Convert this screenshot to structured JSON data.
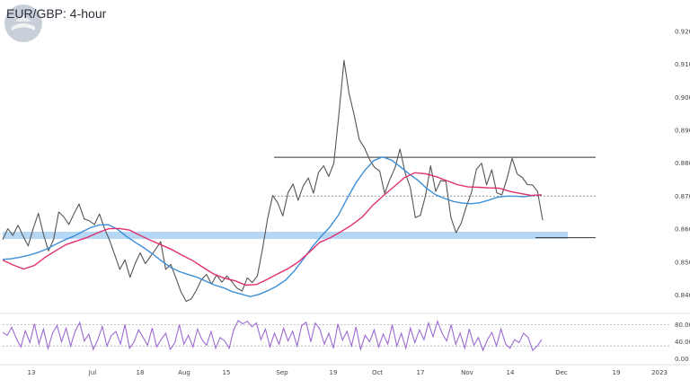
{
  "chart_data": {
    "type": "line",
    "title": "EUR/GBP: 4-hour",
    "x_tick_labels": [
      "13",
      "Jul",
      "18",
      "Aug",
      "15",
      "Sep",
      "19",
      "Oct",
      "17",
      "Nov",
      "14",
      "Dec",
      "19",
      "2023"
    ],
    "y_tick_labels": [
      "0.9200",
      "0.9100",
      "0.9000",
      "0.8900",
      "0.8800",
      "0.8700",
      "0.8600",
      "0.8500",
      "0.8400"
    ],
    "ylim": [
      0.8355,
      0.9295
    ],
    "rsi_tick_labels": [
      "80.00",
      "40.00",
      "0.00"
    ],
    "rsi_ylim": [
      -5,
      100
    ],
    "grid": false,
    "price_series": [
      {
        "name": "",
        "color": "#555555",
        "values": [
          0.8568,
          0.8601,
          0.8581,
          0.8612,
          0.8579,
          0.8549,
          0.8602,
          0.8648,
          0.8584,
          0.8534,
          0.8569,
          0.8652,
          0.8637,
          0.8614,
          0.8647,
          0.8676,
          0.8631,
          0.8625,
          0.8614,
          0.8646,
          0.8601,
          0.8565,
          0.8522,
          0.8478,
          0.8507,
          0.8454,
          0.8495,
          0.8528,
          0.8495,
          0.8517,
          0.8538,
          0.8562,
          0.8478,
          0.8493,
          0.8452,
          0.841,
          0.8381,
          0.8388,
          0.8414,
          0.8446,
          0.8463,
          0.8433,
          0.8461,
          0.8439,
          0.8458,
          0.844,
          0.8421,
          0.8412,
          0.8452,
          0.8438,
          0.8458,
          0.854,
          0.8631,
          0.8702,
          0.8679,
          0.864,
          0.871,
          0.8737,
          0.8687,
          0.8731,
          0.8755,
          0.8709,
          0.8772,
          0.8792,
          0.876,
          0.8799,
          0.8948,
          0.9112,
          0.9012,
          0.8946,
          0.8871,
          0.8847,
          0.8812,
          0.8787,
          0.8776,
          0.8708,
          0.8751,
          0.8785,
          0.8843,
          0.8771,
          0.8727,
          0.8635,
          0.8642,
          0.8701,
          0.8792,
          0.8714,
          0.8747,
          0.8745,
          0.8635,
          0.8589,
          0.8618,
          0.8668,
          0.8709,
          0.8781,
          0.88,
          0.8734,
          0.878,
          0.871,
          0.8704,
          0.8753,
          0.8815,
          0.8767,
          0.8757,
          0.8735,
          0.8734,
          0.8714,
          0.8627
        ]
      }
    ],
    "moving_averages": [
      {
        "name": "",
        "color": "#3d8fd9",
        "values": [
          0.8508,
          0.851,
          0.8515,
          0.8521,
          0.8529,
          0.854,
          0.8554,
          0.8567,
          0.8578,
          0.8592,
          0.8605,
          0.8613,
          0.8613,
          0.8599,
          0.8578,
          0.856,
          0.8543,
          0.8524,
          0.8503,
          0.8484,
          0.8471,
          0.8462,
          0.8454,
          0.8442,
          0.843,
          0.8422,
          0.841,
          0.8403,
          0.8395,
          0.8402,
          0.8413,
          0.8427,
          0.8445,
          0.8473,
          0.8508,
          0.8545,
          0.8577,
          0.8605,
          0.8643,
          0.8694,
          0.8741,
          0.8779,
          0.8808,
          0.8819,
          0.8809,
          0.8789,
          0.8767,
          0.8748,
          0.8723,
          0.8704,
          0.8693,
          0.8684,
          0.8679,
          0.8677,
          0.868,
          0.8688,
          0.8697,
          0.87,
          0.87,
          0.8698,
          0.8702,
          0.8704
        ]
      },
      {
        "name": "",
        "color": "#e0306f",
        "values": [
          0.8506,
          0.8491,
          0.8479,
          0.849,
          0.8514,
          0.8534,
          0.8553,
          0.8564,
          0.8575,
          0.8589,
          0.8601,
          0.8602,
          0.8597,
          0.8581,
          0.8566,
          0.8552,
          0.8538,
          0.852,
          0.8504,
          0.8483,
          0.8463,
          0.8451,
          0.8443,
          0.843,
          0.8432,
          0.8447,
          0.8464,
          0.848,
          0.8501,
          0.853,
          0.856,
          0.8574,
          0.8592,
          0.8612,
          0.8636,
          0.8672,
          0.8701,
          0.8728,
          0.8756,
          0.8771,
          0.8768,
          0.8759,
          0.8747,
          0.8735,
          0.8728,
          0.8727,
          0.8725,
          0.8724,
          0.8714,
          0.8708,
          0.8702,
          0.8704
        ]
      }
    ],
    "support_zone": [
      0.857,
      0.8592
    ],
    "horizontal_levels": [
      {
        "value": 0.8818,
        "style": "solid"
      },
      {
        "value": 0.87,
        "style": "dotted"
      },
      {
        "value": 0.8574,
        "style": "solid"
      }
    ],
    "rsi": {
      "color": "#9c6bd0",
      "values": [
        62,
        55,
        74,
        48,
        28,
        66,
        38,
        82,
        35,
        70,
        24,
        60,
        78,
        40,
        72,
        30,
        65,
        85,
        42,
        58,
        22,
        45,
        76,
        30,
        55,
        64,
        35,
        80,
        25,
        40,
        68,
        50,
        32,
        72,
        28,
        46,
        60,
        22,
        38,
        80,
        35,
        55,
        28,
        70,
        45,
        32,
        64,
        25,
        50,
        42,
        25,
        68,
        90,
        82,
        88,
        75,
        84,
        45,
        70,
        28,
        60,
        34,
        72,
        42,
        65,
        30,
        78,
        86,
        40,
        84,
        70,
        35,
        60,
        25,
        82,
        44,
        65,
        30,
        75,
        22,
        55,
        40,
        68,
        28,
        58,
        35,
        80,
        30,
        60,
        25,
        72,
        38,
        68,
        45,
        84,
        52,
        88,
        60,
        42,
        80,
        34,
        60,
        25,
        70,
        32,
        50,
        20,
        45,
        62,
        30,
        70,
        35,
        25,
        45,
        38,
        60,
        50,
        20,
        30,
        45
      ]
    },
    "rsi_levels": [
      80,
      30
    ]
  }
}
